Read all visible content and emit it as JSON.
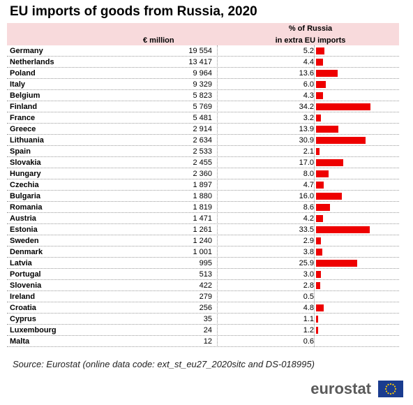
{
  "title": "EU imports of goods from Russia, 2020",
  "headers": {
    "col1": "€ million",
    "col2_line1": "% of Russia",
    "col2_line2": "in extra EU imports"
  },
  "source": "Source: Eurostat (online data code: ext_st_eu27_2020sitc and DS-018995)",
  "logo_text": "eurostat",
  "colors": {
    "bar": "#ee0000",
    "header_band": "#f8dadc"
  },
  "chart_data": {
    "type": "table",
    "title": "EU imports of goods from Russia, 2020",
    "columns": [
      "",
      "€ million",
      "% of Russia in extra EU imports"
    ],
    "rows": [
      {
        "country": "Germany",
        "million": "19 554",
        "pct": "5.2",
        "pct_value": 5.2
      },
      {
        "country": "Netherlands",
        "million": "13 417",
        "pct": "4.4",
        "pct_value": 4.4
      },
      {
        "country": "Poland",
        "million": "9 964",
        "pct": "13.6",
        "pct_value": 13.6
      },
      {
        "country": "Italy",
        "million": "9 329",
        "pct": "6.0",
        "pct_value": 6.0
      },
      {
        "country": "Belgium",
        "million": "5 823",
        "pct": "4.3",
        "pct_value": 4.3
      },
      {
        "country": "Finland",
        "million": "5 769",
        "pct": "34.2",
        "pct_value": 34.2
      },
      {
        "country": "France",
        "million": "5 481",
        "pct": "3.2",
        "pct_value": 3.2
      },
      {
        "country": "Greece",
        "million": "2 914",
        "pct": "13.9",
        "pct_value": 13.9
      },
      {
        "country": "Lithuania",
        "million": "2 634",
        "pct": "30.9",
        "pct_value": 30.9
      },
      {
        "country": "Spain",
        "million": "2 533",
        "pct": "2.1",
        "pct_value": 2.1
      },
      {
        "country": "Slovakia",
        "million": "2 455",
        "pct": "17.0",
        "pct_value": 17.0
      },
      {
        "country": "Hungary",
        "million": "2 360",
        "pct": "8.0",
        "pct_value": 8.0
      },
      {
        "country": "Czechia",
        "million": "1 897",
        "pct": "4.7",
        "pct_value": 4.7
      },
      {
        "country": "Bulgaria",
        "million": "1 880",
        "pct": "16.0",
        "pct_value": 16.0
      },
      {
        "country": "Romania",
        "million": "1 819",
        "pct": "8.6",
        "pct_value": 8.6
      },
      {
        "country": "Austria",
        "million": "1 471",
        "pct": "4.2",
        "pct_value": 4.2
      },
      {
        "country": "Estonia",
        "million": "1 261",
        "pct": "33.5",
        "pct_value": 33.5
      },
      {
        "country": "Sweden",
        "million": "1 240",
        "pct": "2.9",
        "pct_value": 2.9
      },
      {
        "country": "Denmark",
        "million": "1 001",
        "pct": "3.8",
        "pct_value": 3.8
      },
      {
        "country": "Latvia",
        "million": "995",
        "pct": "25.9",
        "pct_value": 25.9
      },
      {
        "country": "Portugal",
        "million": "513",
        "pct": "3.0",
        "pct_value": 3.0
      },
      {
        "country": "Slovenia",
        "million": "422",
        "pct": "2.8",
        "pct_value": 2.8
      },
      {
        "country": "Ireland",
        "million": "279",
        "pct": "0.5",
        "pct_value": 0.5
      },
      {
        "country": "Croatia",
        "million": "256",
        "pct": "4.8",
        "pct_value": 4.8
      },
      {
        "country": "Cyprus",
        "million": "35",
        "pct": "1.1",
        "pct_value": 1.1
      },
      {
        "country": "Luxembourg",
        "million": "24",
        "pct": "1.2",
        "pct_value": 1.2
      },
      {
        "country": "Malta",
        "million": "12",
        "pct": "0.6",
        "pct_value": 0.6
      }
    ],
    "bar_max": 35
  }
}
